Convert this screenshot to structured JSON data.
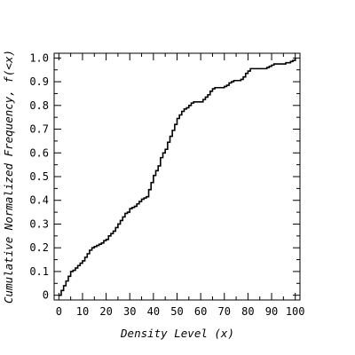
{
  "chart_data": {
    "type": "line",
    "step": true,
    "title": "",
    "xlabel": "Density Level (x)",
    "ylabel": "Cumulative Normalized Frequency, f(<x)",
    "xlim": [
      -2,
      102
    ],
    "ylim": [
      -0.02,
      1.02
    ],
    "x_ticks": [
      0,
      10,
      20,
      30,
      40,
      50,
      60,
      70,
      80,
      90,
      100
    ],
    "y_ticks": [
      0,
      0.1,
      0.2,
      0.3,
      0.4,
      0.5,
      0.6,
      0.7,
      0.8,
      0.9,
      1.0
    ],
    "x_tick_labels": [
      "0",
      "10",
      "20",
      "30",
      "40",
      "50",
      "60",
      "70",
      "80",
      "90",
      "100"
    ],
    "y_tick_labels": [
      "0",
      "0.1",
      "0.2",
      "0.3",
      "0.4",
      "0.5",
      "0.6",
      "0.7",
      "0.8",
      "0.9",
      "1.0"
    ],
    "grid": false,
    "line_color": "#000000",
    "series": [
      {
        "x": [
          0,
          1,
          2,
          3,
          4,
          5,
          6,
          7,
          8,
          9,
          10,
          11,
          12,
          13,
          14,
          15,
          16,
          17,
          18,
          19,
          20,
          21,
          22,
          23,
          24,
          25,
          26,
          27,
          28,
          29,
          30,
          31,
          32,
          33,
          34,
          35,
          36,
          37,
          38,
          39,
          40,
          41,
          42,
          43,
          44,
          45,
          46,
          47,
          48,
          49,
          50,
          51,
          52,
          53,
          54,
          55,
          56,
          57,
          58,
          59,
          60,
          61,
          62,
          63,
          64,
          65,
          66,
          67,
          68,
          69,
          70,
          71,
          72,
          73,
          74,
          75,
          76,
          77,
          78,
          79,
          80,
          81,
          82,
          83,
          84,
          85,
          86,
          87,
          88,
          89,
          90,
          91,
          92,
          93,
          94,
          95,
          96,
          97,
          98,
          99,
          100
        ],
        "y": [
          0.0,
          0.02,
          0.04,
          0.06,
          0.08,
          0.1,
          0.105,
          0.115,
          0.125,
          0.135,
          0.145,
          0.16,
          0.175,
          0.19,
          0.2,
          0.205,
          0.21,
          0.215,
          0.22,
          0.23,
          0.235,
          0.25,
          0.26,
          0.27,
          0.285,
          0.3,
          0.315,
          0.33,
          0.345,
          0.35,
          0.365,
          0.37,
          0.375,
          0.385,
          0.395,
          0.405,
          0.41,
          0.415,
          0.445,
          0.475,
          0.505,
          0.525,
          0.545,
          0.58,
          0.6,
          0.615,
          0.645,
          0.67,
          0.695,
          0.72,
          0.745,
          0.76,
          0.775,
          0.785,
          0.79,
          0.8,
          0.81,
          0.815,
          0.815,
          0.815,
          0.815,
          0.825,
          0.835,
          0.845,
          0.86,
          0.87,
          0.875,
          0.875,
          0.875,
          0.875,
          0.88,
          0.885,
          0.895,
          0.9,
          0.905,
          0.905,
          0.905,
          0.91,
          0.92,
          0.935,
          0.945,
          0.955,
          0.955,
          0.955,
          0.955,
          0.955,
          0.955,
          0.955,
          0.96,
          0.965,
          0.97,
          0.975,
          0.975,
          0.975,
          0.975,
          0.975,
          0.98,
          0.98,
          0.985,
          0.99,
          1.0
        ]
      }
    ]
  }
}
